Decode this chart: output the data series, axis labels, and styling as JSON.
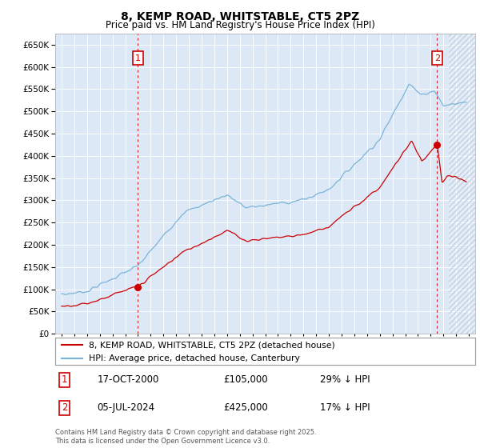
{
  "title": "8, KEMP ROAD, WHITSTABLE, CT5 2PZ",
  "subtitle": "Price paid vs. HM Land Registry's House Price Index (HPI)",
  "ylim": [
    0,
    675000
  ],
  "yticks": [
    0,
    50000,
    100000,
    150000,
    200000,
    250000,
    300000,
    350000,
    400000,
    450000,
    500000,
    550000,
    600000,
    650000
  ],
  "xlim_start": 1994.5,
  "xlim_end": 2027.5,
  "background_color": "#ffffff",
  "chart_bg_color": "#dce8f5",
  "grid_color": "#ffffff",
  "sale1": {
    "date_num": 2001.0,
    "price": 105000,
    "label": "1",
    "date_str": "17-OCT-2000",
    "pct": "29% ↓ HPI"
  },
  "sale2": {
    "date_num": 2024.51,
    "price": 425000,
    "label": "2",
    "date_str": "05-JUL-2024",
    "pct": "17% ↓ HPI"
  },
  "legend_label_red": "8, KEMP ROAD, WHITSTABLE, CT5 2PZ (detached house)",
  "legend_label_blue": "HPI: Average price, detached house, Canterbury",
  "footer": "Contains HM Land Registry data © Crown copyright and database right 2025.\nThis data is licensed under the Open Government Licence v3.0.",
  "red_color": "#cc0000",
  "blue_color": "#7ab4d8",
  "vline_color": "#cc0000",
  "annotation_box_color": "#cc0000",
  "hatch_color": "#b0c4d8",
  "future_start": 2025.42
}
